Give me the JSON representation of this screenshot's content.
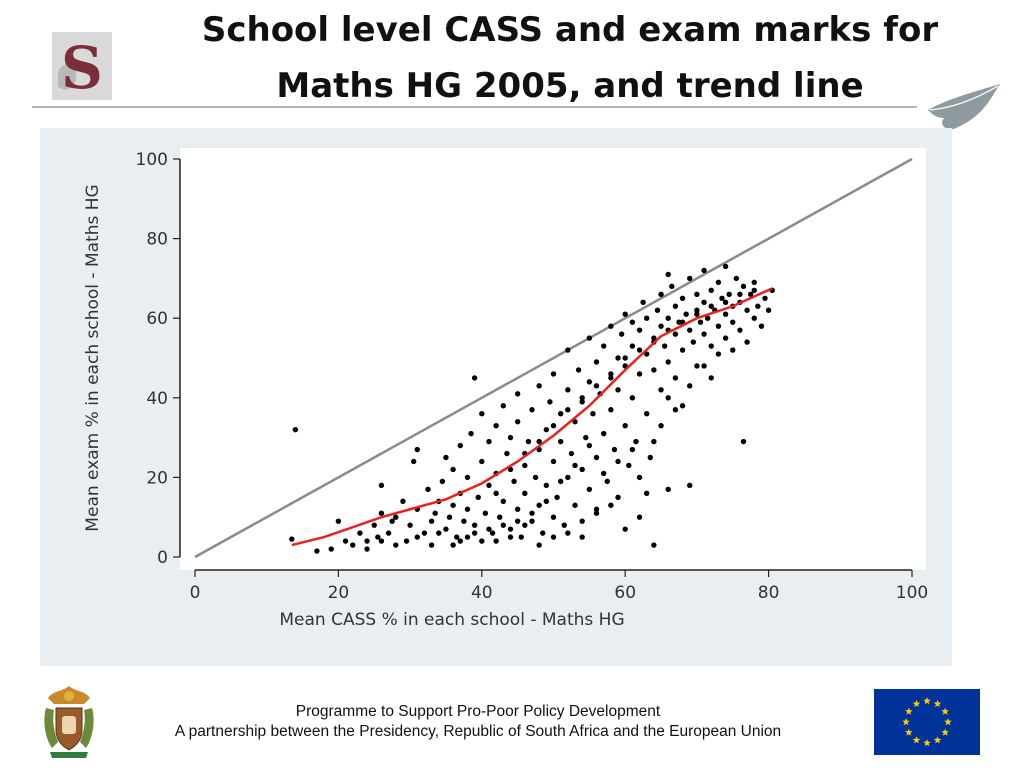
{
  "slide": {
    "title_line1": "School level CASS and exam marks for",
    "title_line2": "Maths HG 2005, and trend line",
    "footer_line1": "Programme to Support Pro-Poor Policy Development",
    "footer_line2": "A partnership between the Presidency, Republic of South Africa and the European Union"
  },
  "colors": {
    "panel_background": "#e8eef1",
    "plot_background": "#ffffff",
    "points": "#000000",
    "trend_line": "#e8221c",
    "reference_line": "#8a8a8a",
    "eu_blue": "#003399",
    "eu_yellow": "#ffcc00",
    "logo_maroon": "#7b2d3b"
  },
  "icons": {
    "left_logo": "university-s-logo-icon",
    "right_logo": "feather-icon",
    "bottom_left": "coat-of-arms-icon",
    "bottom_right": "eu-flag-icon"
  },
  "chart_data": {
    "type": "scatter",
    "title": "School level CASS and exam marks for Maths HG 2005, and trend line",
    "xlabel": "Mean CASS % in each school - Maths HG",
    "ylabel": "Mean exam % in each school - Maths HG",
    "xlim": [
      0,
      100
    ],
    "ylim": [
      0,
      100
    ],
    "xticks": [
      0,
      20,
      40,
      60,
      80,
      100
    ],
    "yticks": [
      0,
      20,
      40,
      60,
      80,
      100
    ],
    "grid": false,
    "legend": "none",
    "reference_line": {
      "x": [
        0,
        100
      ],
      "y": [
        0,
        100
      ]
    },
    "trend_line": {
      "x": [
        13.5,
        18,
        22,
        26,
        30,
        35,
        40,
        45,
        50,
        55,
        60,
        65,
        70,
        75,
        80.5
      ],
      "y": [
        3,
        5,
        7.5,
        10,
        12,
        14.5,
        18.5,
        24,
        30.5,
        38,
        47,
        55.5,
        60,
        63,
        67.5
      ]
    },
    "points": [
      [
        14,
        32
      ],
      [
        13.5,
        4.5
      ],
      [
        17,
        1.5
      ],
      [
        19,
        2
      ],
      [
        20,
        9
      ],
      [
        21,
        4
      ],
      [
        22,
        3
      ],
      [
        23,
        6
      ],
      [
        24,
        4
      ],
      [
        25,
        8
      ],
      [
        25.5,
        5
      ],
      [
        26,
        11
      ],
      [
        26,
        18
      ],
      [
        27,
        6
      ],
      [
        27.5,
        9
      ],
      [
        28,
        10
      ],
      [
        29,
        14
      ],
      [
        29.5,
        4
      ],
      [
        30,
        8
      ],
      [
        30.5,
        24
      ],
      [
        31,
        27
      ],
      [
        31,
        12
      ],
      [
        32,
        6
      ],
      [
        32.5,
        17
      ],
      [
        33,
        9
      ],
      [
        33.5,
        11
      ],
      [
        34,
        14
      ],
      [
        34.5,
        19
      ],
      [
        35,
        7
      ],
      [
        35,
        25
      ],
      [
        35.5,
        10
      ],
      [
        36,
        22
      ],
      [
        36,
        13
      ],
      [
        36.5,
        5
      ],
      [
        37,
        16
      ],
      [
        37,
        28
      ],
      [
        37.5,
        9
      ],
      [
        38,
        20
      ],
      [
        38,
        12
      ],
      [
        38.5,
        31
      ],
      [
        39,
        8
      ],
      [
        39,
        45
      ],
      [
        39.5,
        15
      ],
      [
        40,
        24
      ],
      [
        40,
        36
      ],
      [
        40,
        4
      ],
      [
        40.5,
        11
      ],
      [
        41,
        29
      ],
      [
        41,
        18
      ],
      [
        41.5,
        6
      ],
      [
        42,
        33
      ],
      [
        42,
        21
      ],
      [
        42.5,
        10
      ],
      [
        43,
        38
      ],
      [
        43,
        14
      ],
      [
        43.5,
        26
      ],
      [
        44,
        7
      ],
      [
        44,
        30
      ],
      [
        44.5,
        19
      ],
      [
        45,
        41
      ],
      [
        45,
        12
      ],
      [
        45,
        34
      ],
      [
        45.5,
        5
      ],
      [
        46,
        23
      ],
      [
        46,
        16
      ],
      [
        46.5,
        29
      ],
      [
        47,
        9
      ],
      [
        47,
        37
      ],
      [
        47.5,
        20
      ],
      [
        48,
        43
      ],
      [
        48,
        13
      ],
      [
        48,
        27
      ],
      [
        48.5,
        6
      ],
      [
        49,
        32
      ],
      [
        49,
        18
      ],
      [
        49.5,
        39
      ],
      [
        50,
        24
      ],
      [
        50,
        10
      ],
      [
        50,
        46
      ],
      [
        50.5,
        15
      ],
      [
        51,
        29
      ],
      [
        51,
        36
      ],
      [
        51.5,
        8
      ],
      [
        52,
        42
      ],
      [
        52,
        20
      ],
      [
        52,
        52
      ],
      [
        52.5,
        26
      ],
      [
        53,
        13
      ],
      [
        53,
        34
      ],
      [
        53.5,
        47
      ],
      [
        54,
        22
      ],
      [
        54,
        39
      ],
      [
        54,
        5
      ],
      [
        54.5,
        30
      ],
      [
        55,
        44
      ],
      [
        55,
        17
      ],
      [
        55,
        55
      ],
      [
        55.5,
        36
      ],
      [
        56,
        25
      ],
      [
        56,
        49
      ],
      [
        56,
        12
      ],
      [
        56.5,
        41
      ],
      [
        57,
        31
      ],
      [
        57,
        53
      ],
      [
        57.5,
        19
      ],
      [
        58,
        46
      ],
      [
        58,
        37
      ],
      [
        58,
        58
      ],
      [
        58.5,
        27
      ],
      [
        59,
        50
      ],
      [
        59,
        42
      ],
      [
        59,
        15
      ],
      [
        59.5,
        56
      ],
      [
        60,
        33
      ],
      [
        60,
        48
      ],
      [
        60,
        61
      ],
      [
        60.5,
        23
      ],
      [
        61,
        53
      ],
      [
        61,
        40
      ],
      [
        61,
        59
      ],
      [
        61.5,
        29
      ],
      [
        62,
        46
      ],
      [
        62,
        57
      ],
      [
        62.5,
        64
      ],
      [
        63,
        51
      ],
      [
        63,
        36
      ],
      [
        63,
        60
      ],
      [
        63.5,
        25
      ],
      [
        64,
        55
      ],
      [
        64,
        3
      ],
      [
        64,
        47
      ],
      [
        64.5,
        62
      ],
      [
        65,
        58
      ],
      [
        65,
        42
      ],
      [
        65,
        66
      ],
      [
        65.5,
        53
      ],
      [
        66,
        60
      ],
      [
        66,
        49
      ],
      [
        66,
        17
      ],
      [
        66.5,
        68
      ],
      [
        67,
        56
      ],
      [
        67,
        63
      ],
      [
        67,
        45
      ],
      [
        67.5,
        59
      ],
      [
        68,
        65
      ],
      [
        68,
        52
      ],
      [
        68,
        38
      ],
      [
        68.5,
        61
      ],
      [
        69,
        57
      ],
      [
        69,
        70
      ],
      [
        69,
        18
      ],
      [
        69.5,
        54
      ],
      [
        70,
        62
      ],
      [
        70,
        66
      ],
      [
        70,
        48
      ],
      [
        70.5,
        59
      ],
      [
        71,
        64
      ],
      [
        71,
        56
      ],
      [
        71,
        72
      ],
      [
        71.5,
        60
      ],
      [
        72,
        53
      ],
      [
        72,
        67
      ],
      [
        72,
        45
      ],
      [
        72.5,
        62
      ],
      [
        73,
        58
      ],
      [
        73,
        69
      ],
      [
        73,
        51
      ],
      [
        73.5,
        65
      ],
      [
        74,
        61
      ],
      [
        74,
        55
      ],
      [
        74,
        73
      ],
      [
        74.5,
        66
      ],
      [
        75,
        59
      ],
      [
        75,
        63
      ],
      [
        75,
        52
      ],
      [
        75.5,
        70
      ],
      [
        76,
        64
      ],
      [
        76,
        57
      ],
      [
        76.5,
        68
      ],
      [
        76.5,
        29
      ],
      [
        77,
        62
      ],
      [
        77,
        54
      ],
      [
        77.5,
        66
      ],
      [
        78,
        60
      ],
      [
        78,
        69
      ],
      [
        78.5,
        63
      ],
      [
        79,
        58
      ],
      [
        79.5,
        65
      ],
      [
        80,
        62
      ],
      [
        80.5,
        67
      ],
      [
        48,
        3
      ],
      [
        50,
        5
      ],
      [
        46,
        8
      ],
      [
        42,
        4
      ],
      [
        38,
        5
      ],
      [
        36,
        3
      ],
      [
        34,
        6
      ],
      [
        44,
        5
      ],
      [
        52,
        6
      ],
      [
        54,
        9
      ],
      [
        56,
        11
      ],
      [
        58,
        13
      ],
      [
        60,
        7
      ],
      [
        62,
        10
      ],
      [
        63,
        16
      ],
      [
        57,
        21
      ],
      [
        59,
        24
      ],
      [
        61,
        27
      ],
      [
        62,
        20
      ],
      [
        65,
        33
      ],
      [
        67,
        37
      ],
      [
        69,
        43
      ],
      [
        71,
        48
      ],
      [
        66,
        40
      ],
      [
        64,
        29
      ],
      [
        55,
        28
      ],
      [
        53,
        23
      ],
      [
        51,
        19
      ],
      [
        49,
        14
      ],
      [
        47,
        11
      ],
      [
        45,
        9
      ],
      [
        43,
        8
      ],
      [
        41,
        7
      ],
      [
        39,
        6
      ],
      [
        37,
        4
      ],
      [
        33,
        3
      ],
      [
        31,
        5
      ],
      [
        28,
        3
      ],
      [
        26,
        4
      ],
      [
        24,
        2
      ],
      [
        42,
        16
      ],
      [
        44,
        22
      ],
      [
        46,
        26
      ],
      [
        48,
        29
      ],
      [
        50,
        33
      ],
      [
        52,
        37
      ],
      [
        54,
        40
      ],
      [
        56,
        43
      ],
      [
        58,
        45
      ],
      [
        60,
        50
      ],
      [
        62,
        52
      ],
      [
        64,
        54
      ],
      [
        66,
        57
      ],
      [
        68,
        59
      ],
      [
        70,
        61
      ],
      [
        72,
        63
      ],
      [
        74,
        64
      ],
      [
        76,
        66
      ],
      [
        78,
        67
      ],
      [
        66,
        71
      ]
    ]
  }
}
